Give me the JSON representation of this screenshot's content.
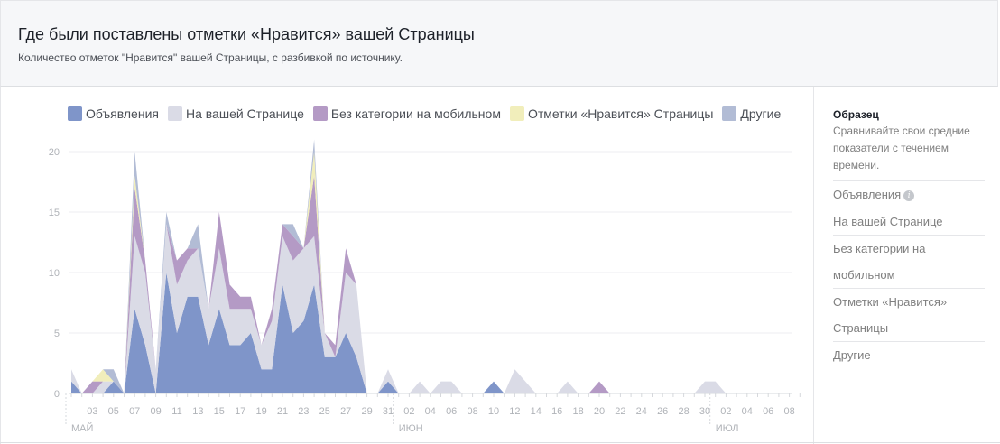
{
  "header": {
    "title": "Где были поставлены отметки «Нравится» вашей Страницы",
    "subtitle": "Количество отметок \"Нравится\" вашей Страницы, с разбивкой по источнику."
  },
  "legend": [
    {
      "label": "Объявления",
      "color": "#7f95c9"
    },
    {
      "label": "На вашей Странице",
      "color": "#dadbe6"
    },
    {
      "label": "Без категории на мобильном",
      "color": "#b49ac5"
    },
    {
      "label": "Отметки «Нравится» Страницы",
      "color": "#f1eebb"
    },
    {
      "label": "Другие",
      "color": "#b2bcd5"
    }
  ],
  "sidebar": {
    "title": "Образец",
    "description": "Сравнивайте свои средние показатели с течением времени.",
    "items": [
      {
        "label": "Объявления",
        "icon": "info-icon"
      },
      {
        "label": "На вашей Странице"
      },
      {
        "label": "Без категории на мобильном"
      },
      {
        "label": "Отметки «Нравится» Страницы"
      },
      {
        "label": "Другие"
      }
    ]
  },
  "chart_data": {
    "type": "area",
    "stacked": true,
    "title": "Где были поставлены отметки «Нравится» вашей Страницы",
    "subtitle": "Количество отметок \"Нравится\" вашей Страницы, с разбивкой по источнику.",
    "ylim": [
      0,
      20
    ],
    "yticks": [
      "0",
      "5",
      "10",
      "15",
      "20"
    ],
    "month_labels": [
      {
        "label": "МАЙ",
        "day": 1
      },
      {
        "label": "ИЮН",
        "day": 32
      },
      {
        "label": "ИЮЛ",
        "day": 62
      }
    ],
    "x_tick_labels": [
      {
        "label": "03",
        "day": 3
      },
      {
        "label": "05",
        "day": 5
      },
      {
        "label": "07",
        "day": 7
      },
      {
        "label": "09",
        "day": 9
      },
      {
        "label": "11",
        "day": 11
      },
      {
        "label": "13",
        "day": 13
      },
      {
        "label": "15",
        "day": 15
      },
      {
        "label": "17",
        "day": 17
      },
      {
        "label": "19",
        "day": 19
      },
      {
        "label": "21",
        "day": 21
      },
      {
        "label": "23",
        "day": 23
      },
      {
        "label": "25",
        "day": 25
      },
      {
        "label": "27",
        "day": 27
      },
      {
        "label": "29",
        "day": 29
      },
      {
        "label": "31",
        "day": 31
      },
      {
        "label": "02",
        "day": 33
      },
      {
        "label": "04",
        "day": 35
      },
      {
        "label": "06",
        "day": 37
      },
      {
        "label": "08",
        "day": 39
      },
      {
        "label": "10",
        "day": 41
      },
      {
        "label": "12",
        "day": 43
      },
      {
        "label": "14",
        "day": 45
      },
      {
        "label": "16",
        "day": 47
      },
      {
        "label": "18",
        "day": 49
      },
      {
        "label": "20",
        "day": 51
      },
      {
        "label": "22",
        "day": 53
      },
      {
        "label": "24",
        "day": 55
      },
      {
        "label": "26",
        "day": 57
      },
      {
        "label": "28",
        "day": 59
      },
      {
        "label": "30",
        "day": 61
      },
      {
        "label": "02",
        "day": 63
      },
      {
        "label": "04",
        "day": 65
      },
      {
        "label": "06",
        "day": 67
      },
      {
        "label": "08",
        "day": 69
      }
    ],
    "day_range": [
      1,
      70
    ],
    "series": [
      {
        "name": "Объявления",
        "color": "#7f95c9",
        "values": [
          1,
          0,
          0,
          0,
          1,
          0,
          7,
          4,
          0,
          10,
          5,
          8,
          8,
          4,
          7,
          4,
          4,
          5,
          2,
          2,
          9,
          5,
          6,
          9,
          3,
          3,
          5,
          3,
          0,
          0,
          1,
          0,
          0,
          0,
          0,
          0,
          0,
          0,
          0,
          0,
          1,
          0,
          0,
          0,
          0,
          0,
          0,
          0,
          0,
          0,
          0,
          0,
          0,
          0,
          0,
          0,
          0,
          0,
          0,
          0,
          0,
          0,
          0,
          0,
          0,
          0,
          0,
          0,
          0,
          0
        ]
      },
      {
        "name": "На вашей Странице",
        "color": "#dadbe6",
        "values": [
          1,
          0,
          0,
          1,
          0,
          0,
          6,
          6,
          2,
          4,
          4,
          3,
          4,
          3,
          5,
          3,
          3,
          2,
          2,
          4,
          4,
          6,
          6,
          4,
          2,
          0,
          5,
          6,
          0,
          0,
          1,
          0,
          0,
          1,
          0,
          1,
          1,
          0,
          0,
          0,
          0,
          0,
          2,
          1,
          0,
          0,
          0,
          1,
          0,
          0,
          0,
          0,
          0,
          0,
          0,
          0,
          0,
          0,
          0,
          0,
          1,
          1,
          0,
          0,
          0,
          0,
          0,
          0,
          0,
          0
        ]
      },
      {
        "name": "Без категории на мобильном",
        "color": "#b49ac5",
        "values": [
          0,
          0,
          1,
          0,
          0,
          0,
          4,
          1,
          0,
          0,
          2,
          1,
          0,
          0,
          3,
          2,
          1,
          1,
          0,
          1,
          1,
          2,
          0,
          5,
          0,
          1,
          2,
          0,
          0,
          0,
          0,
          0,
          0,
          0,
          0,
          0,
          0,
          0,
          0,
          0,
          0,
          0,
          0,
          0,
          0,
          0,
          0,
          0,
          0,
          0,
          1,
          0,
          0,
          0,
          0,
          0,
          0,
          0,
          0,
          0,
          0,
          0,
          0,
          0,
          0,
          0,
          0,
          0,
          0,
          0
        ]
      },
      {
        "name": "Отметки «Нравится» Страницы",
        "color": "#f1eebb",
        "values": [
          0,
          0,
          0,
          1,
          0,
          0,
          1,
          0,
          0,
          0,
          0,
          0,
          0,
          0,
          0,
          0,
          0,
          0,
          0,
          0,
          0,
          0,
          0,
          2,
          0,
          0,
          0,
          0,
          0,
          0,
          0,
          0,
          0,
          0,
          0,
          0,
          0,
          0,
          0,
          0,
          0,
          0,
          0,
          0,
          0,
          0,
          0,
          0,
          0,
          0,
          0,
          0,
          0,
          0,
          0,
          0,
          0,
          0,
          0,
          0,
          0,
          0,
          0,
          0,
          0,
          0,
          0,
          0,
          0,
          0
        ]
      },
      {
        "name": "Другие",
        "color": "#b2bcd5",
        "values": [
          0,
          0,
          0,
          0,
          1,
          0,
          2,
          0,
          0,
          1,
          0,
          0,
          2,
          0,
          0,
          0,
          0,
          0,
          0,
          0,
          0,
          1,
          0,
          1,
          0,
          0,
          0,
          0,
          0,
          0,
          0,
          0,
          0,
          0,
          0,
          0,
          0,
          0,
          0,
          0,
          0,
          0,
          0,
          0,
          0,
          0,
          0,
          0,
          0,
          0,
          0,
          0,
          0,
          0,
          0,
          0,
          0,
          0,
          0,
          0,
          0,
          0,
          0,
          0,
          0,
          0,
          0,
          0,
          0,
          0
        ]
      }
    ]
  }
}
